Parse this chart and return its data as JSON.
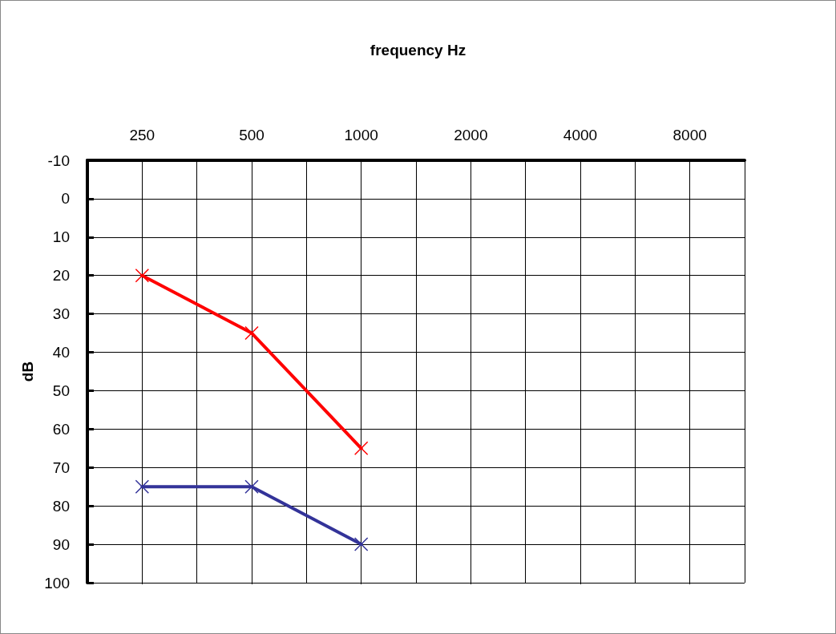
{
  "chart_data": {
    "type": "line",
    "title": "frequency Hz",
    "ylabel": "dB",
    "categories": [
      "250",
      "500",
      "1000",
      "2000",
      "4000",
      "8000"
    ],
    "series": [
      {
        "color": "#ff0000",
        "values": [
          20,
          35,
          65,
          null,
          null,
          null
        ]
      },
      {
        "color": "#333399",
        "values": [
          75,
          75,
          90,
          null,
          null,
          null
        ]
      }
    ],
    "ylim": [
      100,
      -10
    ],
    "yticks": [
      -10,
      0,
      10,
      20,
      30,
      40,
      50,
      60,
      70,
      80,
      90,
      100
    ],
    "grid": true,
    "marker": "cross",
    "line_style": "solid"
  }
}
